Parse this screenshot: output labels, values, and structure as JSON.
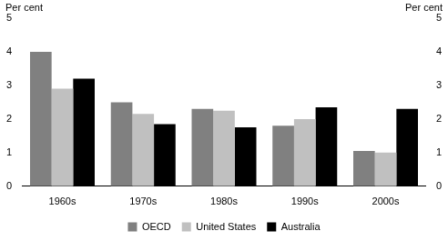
{
  "chart_data": {
    "type": "bar",
    "categories": [
      "1960s",
      "1970s",
      "1980s",
      "1990s",
      "2000s"
    ],
    "series": [
      {
        "name": "OECD",
        "color": "#808080",
        "values": [
          4.0,
          2.5,
          2.3,
          1.8,
          1.05
        ]
      },
      {
        "name": "United States",
        "color": "#c0c0c0",
        "values": [
          2.9,
          2.15,
          2.25,
          2.0,
          1.0
        ]
      },
      {
        "name": "Australia",
        "color": "#000000",
        "values": [
          3.2,
          1.85,
          1.75,
          2.35,
          2.3
        ]
      }
    ],
    "ylabel": "Per cent",
    "y2label": "Per cent",
    "ylim": [
      0,
      5
    ],
    "yticks": [
      0,
      1,
      2,
      3,
      4,
      5
    ],
    "y2lim": [
      0,
      5
    ],
    "y2ticks": [
      0,
      1,
      2,
      3,
      4,
      5
    ],
    "grid": false,
    "legend": "bottom"
  }
}
